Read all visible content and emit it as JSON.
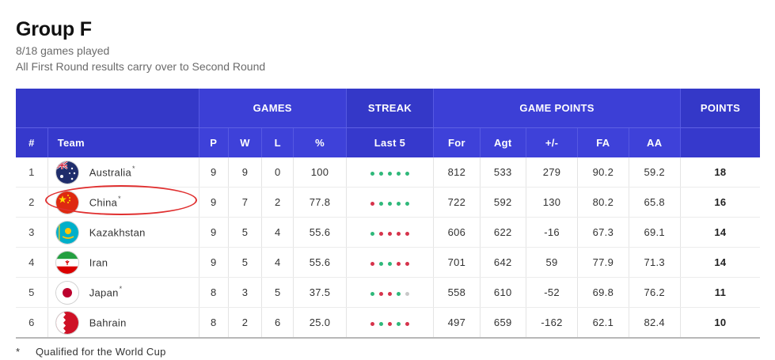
{
  "header": {
    "title": "Group F",
    "games_played": "8/18 games played",
    "note": "All First Round results carry over to Second Round"
  },
  "table": {
    "group_headers": {
      "games": "GAMES",
      "streak": "STREAK",
      "game_points": "GAME POINTS",
      "points": "POINTS"
    },
    "columns": {
      "rank": "#",
      "team": "Team",
      "p": "P",
      "w": "W",
      "l": "L",
      "pct": "%",
      "last5": "Last 5",
      "for": "For",
      "agt": "Agt",
      "pm": "+/-",
      "fa": "FA",
      "aa": "AA"
    },
    "rows": [
      {
        "rank": "1",
        "team": "Australia",
        "qualified": "*",
        "flag": "australia-flag",
        "p": "9",
        "w": "9",
        "l": "0",
        "pct": "100",
        "last5": [
          "W",
          "W",
          "W",
          "W",
          "W"
        ],
        "for": "812",
        "agt": "533",
        "pm": "279",
        "fa": "90.2",
        "aa": "59.2",
        "pts": "18"
      },
      {
        "rank": "2",
        "team": "China",
        "qualified": "*",
        "flag": "china-flag",
        "p": "9",
        "w": "7",
        "l": "2",
        "pct": "77.8",
        "last5": [
          "L",
          "W",
          "W",
          "W",
          "W"
        ],
        "for": "722",
        "agt": "592",
        "pm": "130",
        "fa": "80.2",
        "aa": "65.8",
        "pts": "16"
      },
      {
        "rank": "3",
        "team": "Kazakhstan",
        "qualified": "",
        "flag": "kazakhstan-flag",
        "p": "9",
        "w": "5",
        "l": "4",
        "pct": "55.6",
        "last5": [
          "W",
          "L",
          "L",
          "L",
          "L"
        ],
        "for": "606",
        "agt": "622",
        "pm": "-16",
        "fa": "67.3",
        "aa": "69.1",
        "pts": "14"
      },
      {
        "rank": "4",
        "team": "Iran",
        "qualified": "",
        "flag": "iran-flag",
        "p": "9",
        "w": "5",
        "l": "4",
        "pct": "55.6",
        "last5": [
          "L",
          "W",
          "W",
          "L",
          "L"
        ],
        "for": "701",
        "agt": "642",
        "pm": "59",
        "fa": "77.9",
        "aa": "71.3",
        "pts": "14"
      },
      {
        "rank": "5",
        "team": "Japan",
        "qualified": "*",
        "flag": "japan-flag",
        "p": "8",
        "w": "3",
        "l": "5",
        "pct": "37.5",
        "last5": [
          "W",
          "L",
          "L",
          "W",
          "N"
        ],
        "for": "558",
        "agt": "610",
        "pm": "-52",
        "fa": "69.8",
        "aa": "76.2",
        "pts": "11"
      },
      {
        "rank": "6",
        "team": "Bahrain",
        "qualified": "",
        "flag": "bahrain-flag",
        "p": "8",
        "w": "2",
        "l": "6",
        "pct": "25.0",
        "last5": [
          "L",
          "W",
          "L",
          "W",
          "L"
        ],
        "for": "497",
        "agt": "659",
        "pm": "-162",
        "fa": "62.1",
        "aa": "82.4",
        "pts": "10"
      }
    ]
  },
  "colors": {
    "header_bg": "#3c3fd6",
    "win": "#2fb87a",
    "loss": "#d6334b",
    "none": "#c8c8c8",
    "highlight": "#e03030"
  },
  "footnote": {
    "symbol": "*",
    "text": "Qualified for the World Cup"
  }
}
